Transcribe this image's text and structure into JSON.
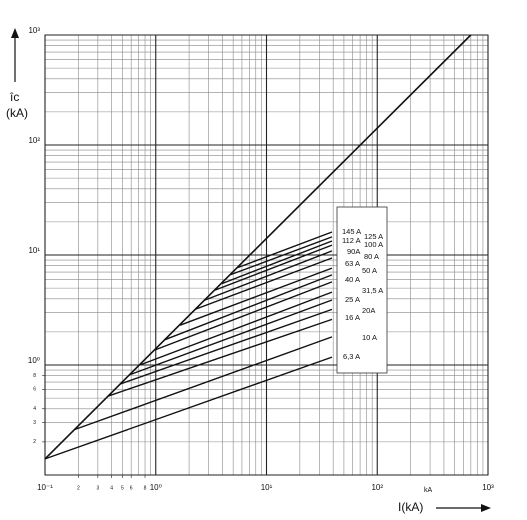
{
  "chart_data": {
    "type": "line",
    "log_x": true,
    "log_y": true,
    "grid": true,
    "y_label_top": "îc",
    "y_label_bottom": "(kA)",
    "x_label": "I(kA)",
    "annotation": "kA",
    "xlim": [
      0.1,
      1000
    ],
    "ylim": [
      0.1,
      1000
    ],
    "xticks": [
      {
        "value": 0.1,
        "label": "10⁻¹"
      },
      {
        "value": 1,
        "label": "10⁰"
      },
      {
        "value": 10,
        "label": "10¹"
      },
      {
        "value": 100,
        "label": "10²"
      },
      {
        "value": 1000,
        "label": "10³"
      }
    ],
    "x_minor_ticks": [
      {
        "value": 0.2,
        "label": "2"
      },
      {
        "value": 0.3,
        "label": "3"
      },
      {
        "value": 0.4,
        "label": "4"
      },
      {
        "value": 0.5,
        "label": "5"
      },
      {
        "value": 0.6,
        "label": "6"
      },
      {
        "value": 0.8,
        "label": "8"
      }
    ],
    "yticks": [
      {
        "value": 1,
        "label": "10⁰"
      },
      {
        "value": 10,
        "label": "10¹"
      },
      {
        "value": 100,
        "label": "10²"
      },
      {
        "value": 1000,
        "label": "10³"
      }
    ],
    "y_minor_ticks": [
      {
        "value": 0.2,
        "label": "2"
      },
      {
        "value": 0.3,
        "label": "3"
      },
      {
        "value": 0.4,
        "label": "4"
      },
      {
        "value": 0.6,
        "label": "6"
      },
      {
        "value": 0.8,
        "label": "8"
      }
    ],
    "reference_line": {
      "x": [
        0.1,
        700
      ],
      "values": [
        0.14,
        1000
      ]
    },
    "series": [
      {
        "name": "145 A",
        "color": "#111",
        "x": [
          5.53,
          39
        ],
        "values": [
          7.7,
          16.2
        ]
      },
      {
        "name": "125 A",
        "color": "#111",
        "x": [
          4.68,
          39
        ],
        "values": [
          6.6,
          14.6
        ]
      },
      {
        "name": "112 A",
        "color": "#111",
        "x": [
          3.96,
          39
        ],
        "values": [
          5.5,
          13.4
        ]
      },
      {
        "name": "100 A",
        "color": "#111",
        "x": [
          3.43,
          39
        ],
        "values": [
          4.8,
          12.3
        ]
      },
      {
        "name": "90A",
        "color": "#111",
        "x": [
          2.79,
          39
        ],
        "values": [
          3.9,
          10.9
        ]
      },
      {
        "name": "80 A",
        "color": "#111",
        "x": [
          2.26,
          39
        ],
        "values": [
          3.2,
          9.4
        ]
      },
      {
        "name": "63 A",
        "color": "#111",
        "x": [
          1.66,
          39
        ],
        "values": [
          2.3,
          7.6
        ]
      },
      {
        "name": "50 A",
        "color": "#111",
        "x": [
          1.21,
          39
        ],
        "values": [
          1.7,
          6.6
        ]
      },
      {
        "name": "40 A",
        "color": "#111",
        "x": [
          0.98,
          39
        ],
        "values": [
          1.37,
          5.7
        ]
      },
      {
        "name": "31,5 A",
        "color": "#111",
        "x": [
          0.72,
          39
        ],
        "values": [
          1.0,
          4.6
        ]
      },
      {
        "name": "25 A",
        "color": "#111",
        "x": [
          0.59,
          39
        ],
        "values": [
          0.82,
          3.9
        ]
      },
      {
        "name": "20A",
        "color": "#111",
        "x": [
          0.475,
          39
        ],
        "values": [
          0.67,
          3.2
        ]
      },
      {
        "name": "16 A",
        "color": "#111",
        "x": [
          0.37,
          39
        ],
        "values": [
          0.52,
          2.6
        ]
      },
      {
        "name": "10 A",
        "color": "#111",
        "x": [
          0.187,
          39
        ],
        "values": [
          0.26,
          1.8
        ]
      },
      {
        "name": "6,3 A",
        "color": "#111",
        "x": [
          0.1,
          39
        ],
        "values": [
          0.14,
          1.18
        ]
      }
    ]
  }
}
